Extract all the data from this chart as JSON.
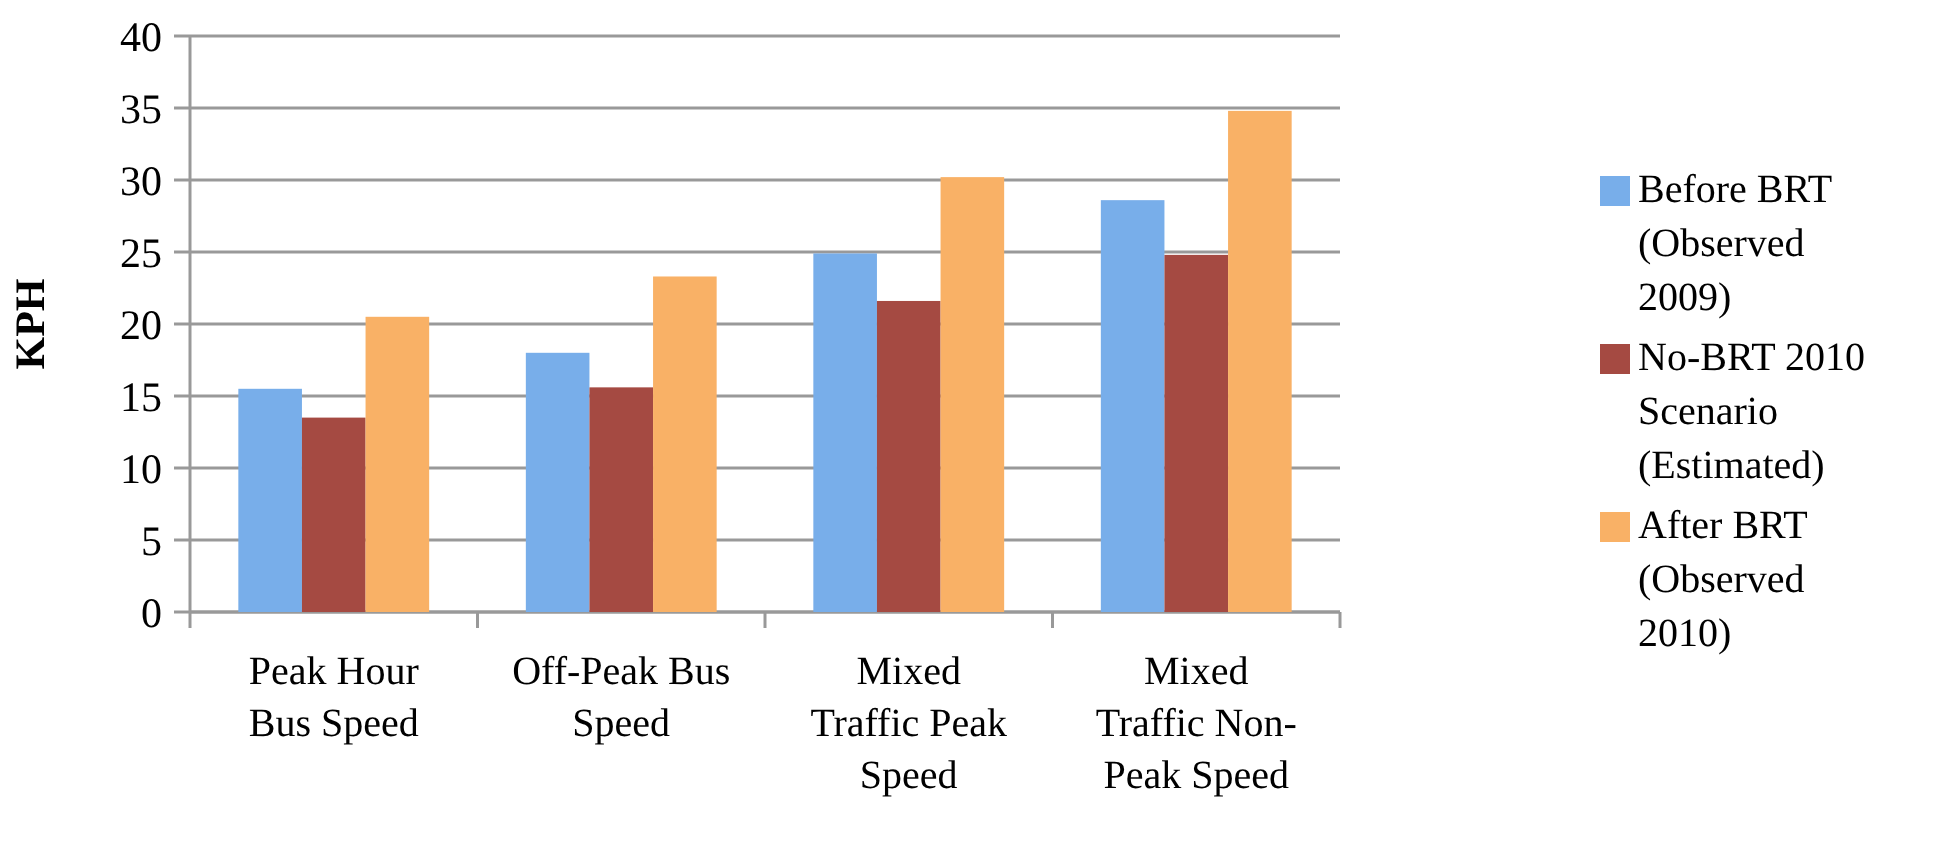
{
  "chart_data": {
    "type": "bar",
    "ylabel": "KPH",
    "categories": [
      "Peak Hour Bus Speed",
      "Off-Peak Bus Speed",
      "Mixed Traffic Peak Speed",
      "Mixed Traffic Non-Peak Speed"
    ],
    "series": [
      {
        "name": "Before BRT (Observed 2009)",
        "color": "#78aeea",
        "values": [
          15.5,
          18,
          24.9,
          28.6
        ]
      },
      {
        "name": "No-BRT 2010 Scenario (Estimated)",
        "color": "#a54a42",
        "values": [
          13.5,
          15.6,
          21.6,
          24.8
        ]
      },
      {
        "name": "After BRT (Observed 2010)",
        "color": "#f9b166",
        "values": [
          20.5,
          23.3,
          30.2,
          34.8
        ]
      }
    ],
    "ylim": [
      0,
      40
    ],
    "yticks": [
      0,
      5,
      10,
      15,
      20,
      25,
      30,
      35,
      40
    ],
    "grid": "y",
    "legend": "right"
  }
}
